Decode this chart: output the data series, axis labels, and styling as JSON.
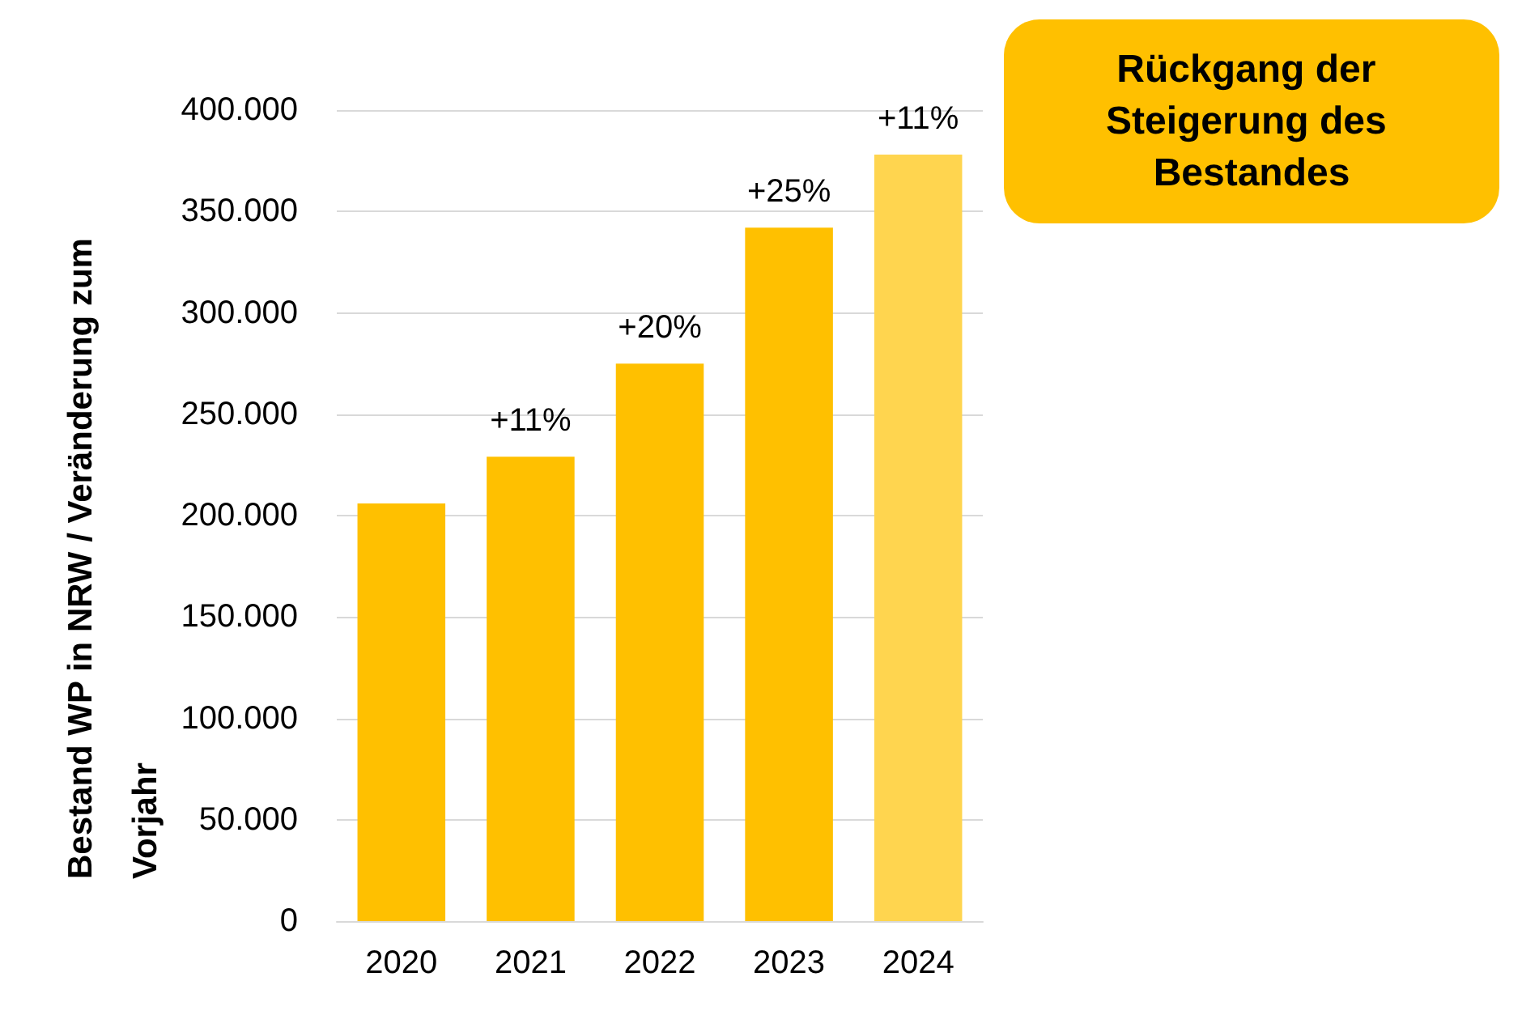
{
  "chart_data": {
    "type": "bar",
    "ylabel": "Bestand WP in NRW / Veränderung zum Vorjahr",
    "categories": [
      "2020",
      "2021",
      "2022",
      "2023",
      "2024"
    ],
    "values": [
      206000,
      229000,
      275000,
      342000,
      378000
    ],
    "colors": [
      "#ffc000",
      "#ffc000",
      "#ffc000",
      "#ffc000",
      "#ffd54f"
    ],
    "ylim": [
      0,
      400000
    ],
    "yticks": [
      {
        "value": 0,
        "label": "0"
      },
      {
        "value": 50000,
        "label": "50.000"
      },
      {
        "value": 100000,
        "label": "100.000"
      },
      {
        "value": 150000,
        "label": "150.000"
      },
      {
        "value": 200000,
        "label": "200.000"
      },
      {
        "value": 250000,
        "label": "250.000"
      },
      {
        "value": 300000,
        "label": "300.000"
      },
      {
        "value": 350000,
        "label": "350.000"
      },
      {
        "value": 400000,
        "label": "400.000"
      }
    ],
    "grid": "y",
    "annotations": [
      "Rückgang der Steigerung des Bestandes",
      {
        "text": "+11%",
        "x": "2021",
        "y": 229000
      },
      {
        "text": "+20%",
        "x": "2022",
        "y": 275000
      },
      {
        "text": "+25%",
        "x": "2023",
        "y": 342000
      },
      {
        "text": "+11%",
        "x": "2024",
        "y": 378000
      }
    ]
  }
}
